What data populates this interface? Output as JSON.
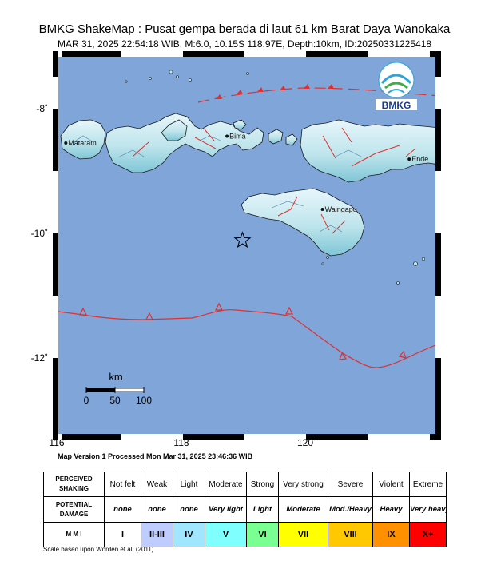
{
  "header": {
    "title": "BMKG ShakeMap : Pusat gempa berada di laut 61 km Barat Daya Wanokaka",
    "subtitle": "MAR 31, 2025 22:54:18 WIB, M:6.0, 10.15S 118.97E, Depth:10km, ID:20250331225418"
  },
  "logo": {
    "text": "BMKG"
  },
  "map": {
    "lon_range": [
      116,
      120
    ],
    "lat_range": [
      -13.5,
      -6.9
    ],
    "lon_ticks": [
      116,
      118,
      120
    ],
    "lat_ticks": [
      -8,
      -10,
      -12
    ],
    "lon_labels": [
      "116˚",
      "118˚",
      "120˚"
    ],
    "lat_labels": [
      "-8˚",
      "-10˚",
      "-12˚"
    ],
    "epicenter": {
      "lon": 118.97,
      "lat": -10.15
    },
    "colors": {
      "sea": "#7fa5d9",
      "land": "#bfe5ec",
      "fault": "#e03030"
    },
    "cities": [
      {
        "name": "Mataram",
        "lon": 116.12,
        "lat": -8.58
      },
      {
        "name": "Bima",
        "lon": 118.72,
        "lat": -8.47
      },
      {
        "name": "Waingapu",
        "lon": 120.26,
        "lat": -9.65
      },
      {
        "name": "Ende",
        "lon": 121.66,
        "lat": -8.84
      }
    ],
    "scale_bar": {
      "unit": "km",
      "labels": [
        "0",
        "50",
        "100"
      ]
    }
  },
  "caption": "Map Version 1 Processed Mon Mar 31, 2025 23:46:36 WIB",
  "legend": {
    "row_headers": {
      "shaking": [
        "PERCEIVED",
        "SHAKING"
      ],
      "damage": [
        "POTENTIAL",
        "DAMAGE"
      ],
      "mmi": "M M I"
    },
    "shaking": [
      "Not felt",
      "Weak",
      "Light",
      "Moderate",
      "Strong",
      "Very strong",
      "Severe",
      "Violent",
      "Extreme"
    ],
    "damage": [
      "none",
      "none",
      "none",
      "Very light",
      "Light",
      "Moderate",
      "Mod./Heavy",
      "Heavy",
      "Very heavy"
    ],
    "mmi": [
      "I",
      "II-III",
      "IV",
      "V",
      "VI",
      "VII",
      "VIII",
      "IX",
      "X+"
    ],
    "mmi_colors": [
      "#ffffff",
      "#bfccff",
      "#a0e6ff",
      "#80ffff",
      "#7aff93",
      "#ffff00",
      "#ffc800",
      "#ff9100",
      "#ff0000"
    ]
  },
  "footnote": "Scale based upon Worden et al. (2011)"
}
